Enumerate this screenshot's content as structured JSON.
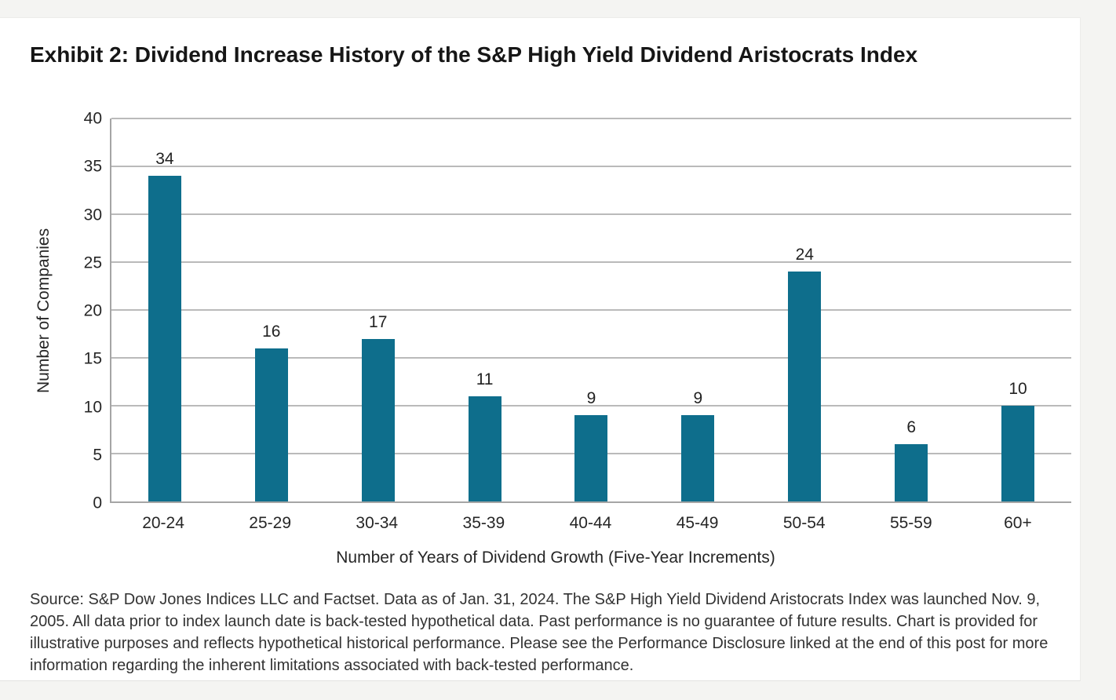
{
  "chart_data": {
    "type": "bar",
    "title": "Exhibit 2: Dividend Increase History of the S&P High Yield Dividend Aristocrats Index",
    "categories": [
      "20-24",
      "25-29",
      "30-34",
      "35-39",
      "40-44",
      "45-49",
      "50-54",
      "55-59",
      "60+"
    ],
    "values": [
      34,
      16,
      17,
      11,
      9,
      9,
      24,
      6,
      10
    ],
    "xlabel": "Number of Years of Dividend Growth (Five-Year Increments)",
    "ylabel": "Number of Companies",
    "ylim": [
      0,
      40
    ],
    "yticks": [
      0,
      5,
      10,
      15,
      20,
      25,
      30,
      35,
      40
    ],
    "grid": true,
    "legend": "none",
    "data_labels": true,
    "bar_color": "#0e6e8c",
    "gridline_color": "#bababa"
  },
  "footer": {
    "source_text": "Source: S&P Dow Jones Indices LLC and Factset. Data as of Jan. 31, 2024. The S&P High Yield Dividend Aristocrats Index was launched Nov. 9, 2005. All data prior to index launch date is back-tested hypothetical data. Past performance is no guarantee of future results. Chart is provided for illustrative purposes and reflects hypothetical historical performance. Please see the Performance Disclosure linked at the end of this post for more information regarding the inherent limitations associated with back-tested performance."
  }
}
